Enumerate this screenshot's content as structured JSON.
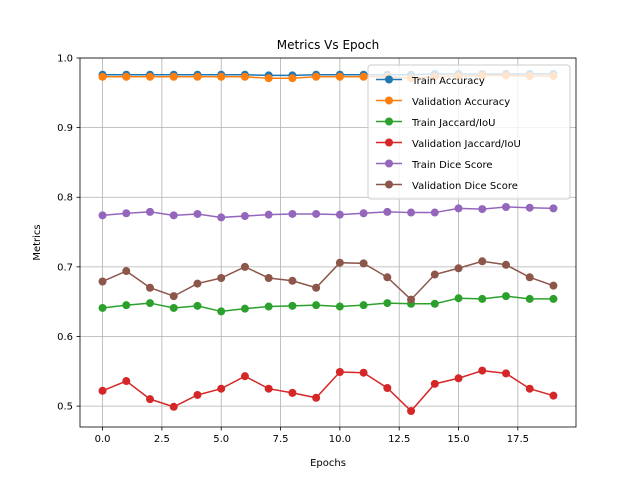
{
  "chart_data": {
    "type": "line",
    "title": "Metrics Vs Epoch",
    "xlabel": "Epochs",
    "ylabel": "Metrics",
    "xlim": [
      -0.95,
      19.95
    ],
    "ylim": [
      0.47,
      1.0
    ],
    "xticks": [
      0,
      2.5,
      5,
      7.5,
      10,
      12.5,
      15,
      17.5
    ],
    "xtick_labels": [
      "0.0",
      "2.5",
      "5.0",
      "7.5",
      "10.0",
      "12.5",
      "15.0",
      "17.5"
    ],
    "yticks": [
      0.5,
      0.6,
      0.7,
      0.8,
      0.9,
      1.0
    ],
    "ytick_labels": [
      "0.5",
      "0.6",
      "0.7",
      "0.8",
      "0.9",
      "1.0"
    ],
    "grid": true,
    "legend_position": "top-right",
    "x": [
      0,
      1,
      2,
      3,
      4,
      5,
      6,
      7,
      8,
      9,
      10,
      11,
      12,
      13,
      14,
      15,
      16,
      17,
      18,
      19
    ],
    "series": [
      {
        "name": "Train Accuracy",
        "color": "#1f77b4",
        "values": [
          0.976,
          0.976,
          0.976,
          0.976,
          0.976,
          0.976,
          0.976,
          0.975,
          0.975,
          0.976,
          0.976,
          0.976,
          0.976,
          0.976,
          0.977,
          0.977,
          0.977,
          0.977,
          0.977,
          0.977
        ]
      },
      {
        "name": "Validation Accuracy",
        "color": "#ff7f0e",
        "values": [
          0.973,
          0.973,
          0.973,
          0.973,
          0.973,
          0.973,
          0.973,
          0.971,
          0.971,
          0.973,
          0.973,
          0.973,
          0.973,
          0.971,
          0.973,
          0.974,
          0.975,
          0.975,
          0.974,
          0.974
        ]
      },
      {
        "name": "Train Jaccard/IoU",
        "color": "#2ca02c",
        "values": [
          0.641,
          0.645,
          0.648,
          0.641,
          0.644,
          0.636,
          0.64,
          0.643,
          0.644,
          0.645,
          0.643,
          0.645,
          0.648,
          0.647,
          0.647,
          0.655,
          0.654,
          0.658,
          0.654,
          0.654
        ]
      },
      {
        "name": "Validation Jaccard/IoU",
        "color": "#d62728",
        "values": [
          0.522,
          0.536,
          0.51,
          0.499,
          0.516,
          0.525,
          0.543,
          0.525,
          0.519,
          0.512,
          0.549,
          0.548,
          0.526,
          0.493,
          0.532,
          0.54,
          0.551,
          0.547,
          0.525,
          0.515
        ]
      },
      {
        "name": "Train Dice Score",
        "color": "#9467bd",
        "values": [
          0.774,
          0.777,
          0.779,
          0.774,
          0.776,
          0.771,
          0.773,
          0.775,
          0.776,
          0.776,
          0.775,
          0.777,
          0.779,
          0.778,
          0.778,
          0.784,
          0.783,
          0.786,
          0.785,
          0.784
        ]
      },
      {
        "name": "Validation Dice Score",
        "color": "#8c564b",
        "values": [
          0.679,
          0.694,
          0.67,
          0.658,
          0.676,
          0.684,
          0.7,
          0.684,
          0.68,
          0.67,
          0.706,
          0.705,
          0.685,
          0.653,
          0.689,
          0.698,
          0.708,
          0.703,
          0.685,
          0.673
        ]
      }
    ]
  }
}
